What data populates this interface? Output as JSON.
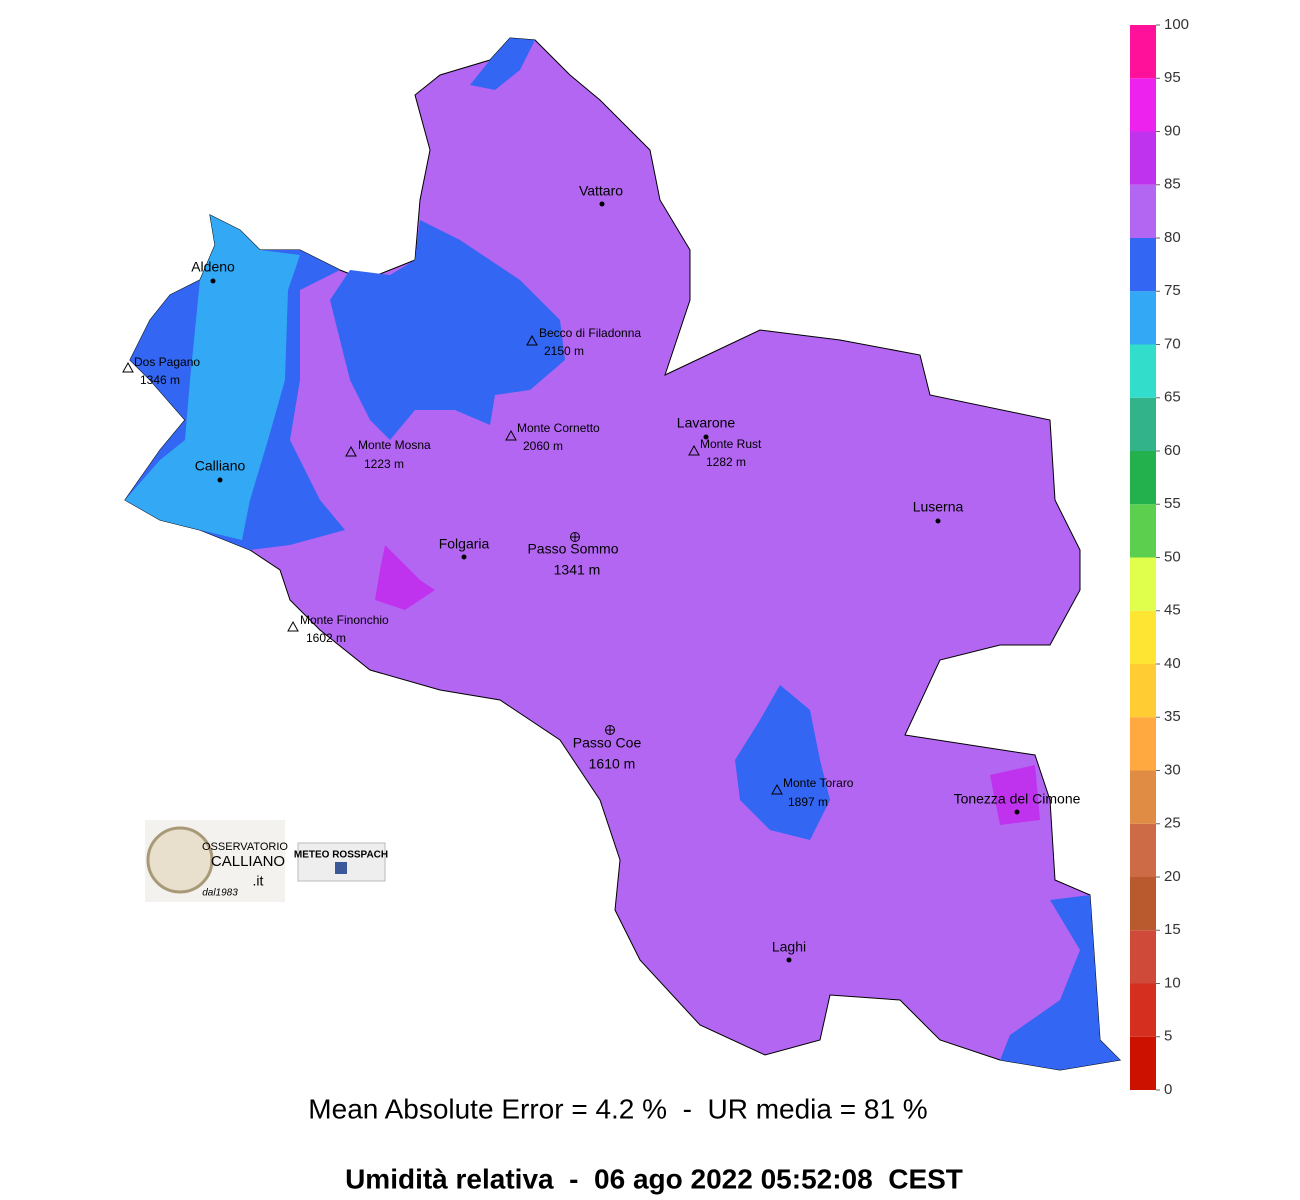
{
  "map": {
    "places": [
      {
        "name": "Vattaro",
        "marker": "dot"
      },
      {
        "name": "Aldeno",
        "marker": "dot"
      },
      {
        "name": "Dos Pagano",
        "elevation": "1346 m",
        "marker": "triangle"
      },
      {
        "name": "Becco di Filadonna",
        "elevation": "2150 m",
        "marker": "triangle"
      },
      {
        "name": "Calliano",
        "marker": "dot"
      },
      {
        "name": "Monte Mosna",
        "elevation": "1223 m",
        "marker": "triangle"
      },
      {
        "name": "Monte Cornetto",
        "elevation": "2060 m",
        "marker": "triangle"
      },
      {
        "name": "Lavarone",
        "marker": "dot"
      },
      {
        "name": "Monte Rust",
        "elevation": "1282 m",
        "marker": "triangle"
      },
      {
        "name": "Luserna",
        "marker": "dot"
      },
      {
        "name": "Folgaria",
        "marker": "dot"
      },
      {
        "name": "Passo Sommo",
        "elevation": "1341 m",
        "marker": "cross"
      },
      {
        "name": "Monte Finonchio",
        "elevation": "1602 m",
        "marker": "triangle"
      },
      {
        "name": "Passo Coe",
        "elevation": "1610 m",
        "marker": "cross"
      },
      {
        "name": "Monte Toraro",
        "elevation": "1897 m",
        "marker": "triangle"
      },
      {
        "name": "Tonezza del Cimone",
        "marker": "dot"
      },
      {
        "name": "Laghi",
        "marker": "dot"
      }
    ],
    "legend": {
      "ticks": [
        0,
        5,
        10,
        15,
        20,
        25,
        30,
        35,
        40,
        45,
        50,
        55,
        60,
        65,
        70,
        75,
        80,
        85,
        90,
        95,
        100
      ],
      "colors": [
        "#cc1100",
        "#d42f1f",
        "#d04a3a",
        "#b85a2e",
        "#cc6b45",
        "#e08c44",
        "#ffa940",
        "#ffcc33",
        "#ffe533",
        "#e0ff4d",
        "#5ccf4f",
        "#22b14c",
        "#33b38a",
        "#33ddcc",
        "#33a9f5",
        "#3366f2",
        "#b366f2",
        "#c033ee",
        "#ee22ee",
        "#ff1199"
      ]
    },
    "logos": {
      "observatory": [
        "OSSERVATORIO",
        "CALLIANO",
        ".it",
        "dal1983"
      ],
      "meteo": "METEO ROSSPACH"
    }
  },
  "footer": {
    "stats": "Mean Absolute Error = 4.2 %  -  UR media = 81 %",
    "title": "Umidità relativa  -  06 ago 2022 05:52:08  CEST"
  }
}
